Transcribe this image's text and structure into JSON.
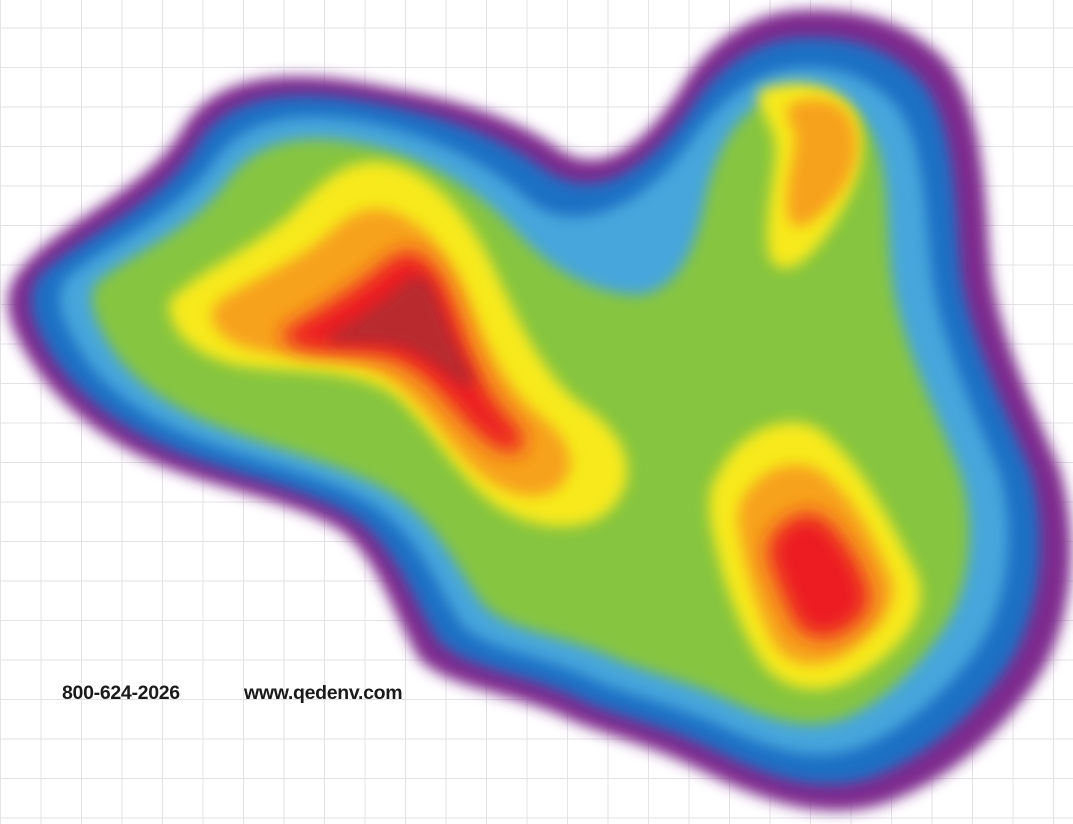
{
  "contact": {
    "phone": "800-624-2026",
    "website": "www.qedenv.com"
  },
  "contour_palette": [
    "#7e2c8e",
    "#1f6fc4",
    "#47a6dc",
    "#86c541",
    "#f7e91c",
    "#f7a21a",
    "#ec1c24",
    "#b8292e"
  ]
}
